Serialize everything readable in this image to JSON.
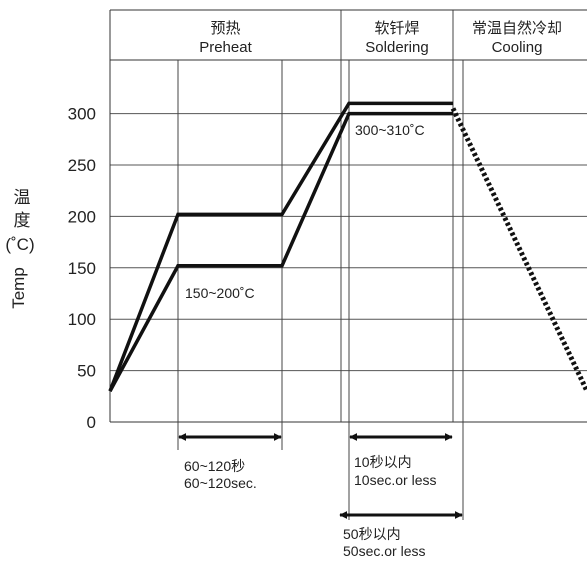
{
  "chart_data": {
    "type": "line",
    "title": "",
    "xlabel": "",
    "ylabel": {
      "cn_chars": [
        "温",
        "度"
      ],
      "unit": "(˚C)",
      "en": "Temp"
    },
    "ylim": [
      0,
      340
    ],
    "yticks": [
      0,
      50,
      100,
      150,
      200,
      250,
      300
    ],
    "phases": [
      {
        "cn": "预热",
        "en": "Preheat"
      },
      {
        "cn": "软钎焊",
        "en": "Soldering"
      },
      {
        "cn": "常温自然冷却",
        "en": "Cooling"
      }
    ],
    "series": [
      {
        "style": "solid",
        "points": [
          [
            0,
            30
          ],
          [
            1,
            202
          ],
          [
            2,
            202
          ],
          [
            3,
            310
          ],
          [
            4,
            310
          ]
        ]
      },
      {
        "style": "solid",
        "points": [
          [
            0,
            30
          ],
          [
            1,
            152
          ],
          [
            2,
            152
          ],
          [
            3,
            300
          ],
          [
            4,
            300
          ]
        ]
      },
      {
        "style": "dotted",
        "points": [
          [
            4,
            305
          ],
          [
            5,
            30
          ]
        ]
      }
    ],
    "annotations": {
      "preheat_range": "150~200˚C",
      "solder_range": "300~310˚C",
      "preheat_time": [
        "60~120秒",
        "60~120sec."
      ],
      "solder_time": [
        "10秒以内",
        "10sec.or less"
      ],
      "total_time": [
        "50秒以内",
        "50sec.or less"
      ]
    }
  }
}
